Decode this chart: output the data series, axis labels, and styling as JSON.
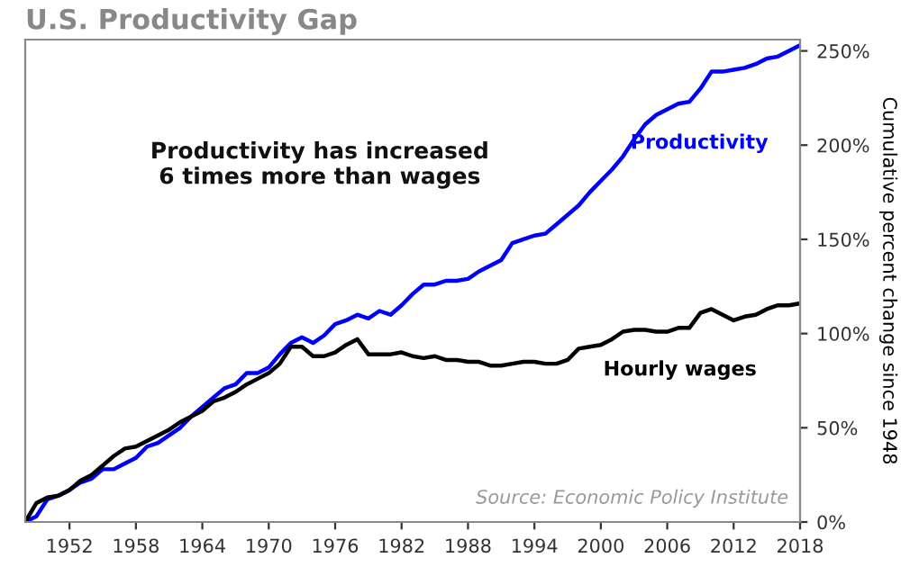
{
  "chart_data": {
    "type": "line",
    "title": "U.S. Productivity Gap",
    "ylabel": "Cumulative percent change since 1948",
    "annotations": [
      "Productivity has increased\n6 times more than wages",
      "Source: Economic Policy Institute"
    ],
    "x": [
      1948,
      1949,
      1950,
      1951,
      1952,
      1953,
      1954,
      1955,
      1956,
      1957,
      1958,
      1959,
      1960,
      1961,
      1962,
      1963,
      1964,
      1965,
      1966,
      1967,
      1968,
      1969,
      1970,
      1971,
      1972,
      1973,
      1974,
      1975,
      1976,
      1977,
      1978,
      1979,
      1980,
      1981,
      1982,
      1983,
      1984,
      1985,
      1986,
      1987,
      1988,
      1989,
      1990,
      1991,
      1992,
      1993,
      1994,
      1995,
      1996,
      1997,
      1998,
      1999,
      2000,
      2001,
      2002,
      2003,
      2004,
      2005,
      2006,
      2007,
      2008,
      2009,
      2010,
      2011,
      2012,
      2013,
      2014,
      2015,
      2016,
      2017,
      2018
    ],
    "series": [
      {
        "name": "Productivity",
        "color": "#0000ff",
        "values": [
          0,
          3,
          12,
          14,
          17,
          21,
          23,
          28,
          28,
          31,
          34,
          40,
          42,
          46,
          50,
          56,
          61,
          66,
          71,
          73,
          79,
          79,
          82,
          89,
          95,
          98,
          95,
          99,
          105,
          107,
          110,
          108,
          112,
          110,
          115,
          121,
          126,
          126,
          128,
          128,
          129,
          133,
          136,
          139,
          148,
          150,
          152,
          153,
          158,
          163,
          168,
          175,
          181,
          187,
          194,
          203,
          211,
          216,
          219,
          222,
          223,
          230,
          239,
          239,
          240,
          241,
          243,
          246,
          247,
          250,
          253
        ]
      },
      {
        "name": "Hourly wages",
        "color": "#000000",
        "values": [
          0,
          10,
          13,
          14,
          17,
          22,
          25,
          30,
          35,
          39,
          40,
          43,
          46,
          49,
          53,
          56,
          59,
          64,
          66,
          69,
          73,
          76,
          79,
          84,
          93,
          93,
          88,
          88,
          90,
          94,
          97,
          89,
          89,
          89,
          90,
          88,
          87,
          88,
          86,
          86,
          85,
          85,
          83,
          83,
          84,
          85,
          85,
          84,
          84,
          86,
          92,
          93,
          94,
          97,
          101,
          102,
          102,
          101,
          101,
          103,
          103,
          111,
          113,
          110,
          107,
          109,
          110,
          113,
          115,
          115,
          116
        ]
      }
    ],
    "xlim": [
      1948,
      2018
    ],
    "xticks": [
      1952,
      1958,
      1964,
      1970,
      1976,
      1982,
      1988,
      1994,
      2000,
      2006,
      2012,
      2018
    ],
    "ylim": [
      0,
      256
    ],
    "yticks": [
      {
        "value": 0,
        "label": "0%"
      },
      {
        "value": 50,
        "label": "50%"
      },
      {
        "value": 100,
        "label": "100%"
      },
      {
        "value": 150,
        "label": "150%"
      },
      {
        "value": 200,
        "label": "200%"
      },
      {
        "value": 250,
        "label": "250%"
      }
    ],
    "grid": false,
    "legend": false,
    "marker": "none",
    "line_style": "solid"
  }
}
